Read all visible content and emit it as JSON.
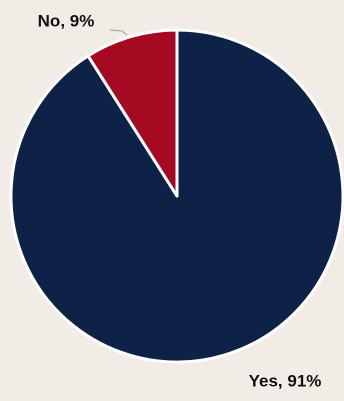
{
  "chart_data": {
    "type": "pie",
    "values": [
      91,
      9
    ],
    "value_labels": [
      "Yes, 91%",
      "No, 9%"
    ],
    "colors": [
      "#0e2248",
      "#a50a22"
    ]
  }
}
